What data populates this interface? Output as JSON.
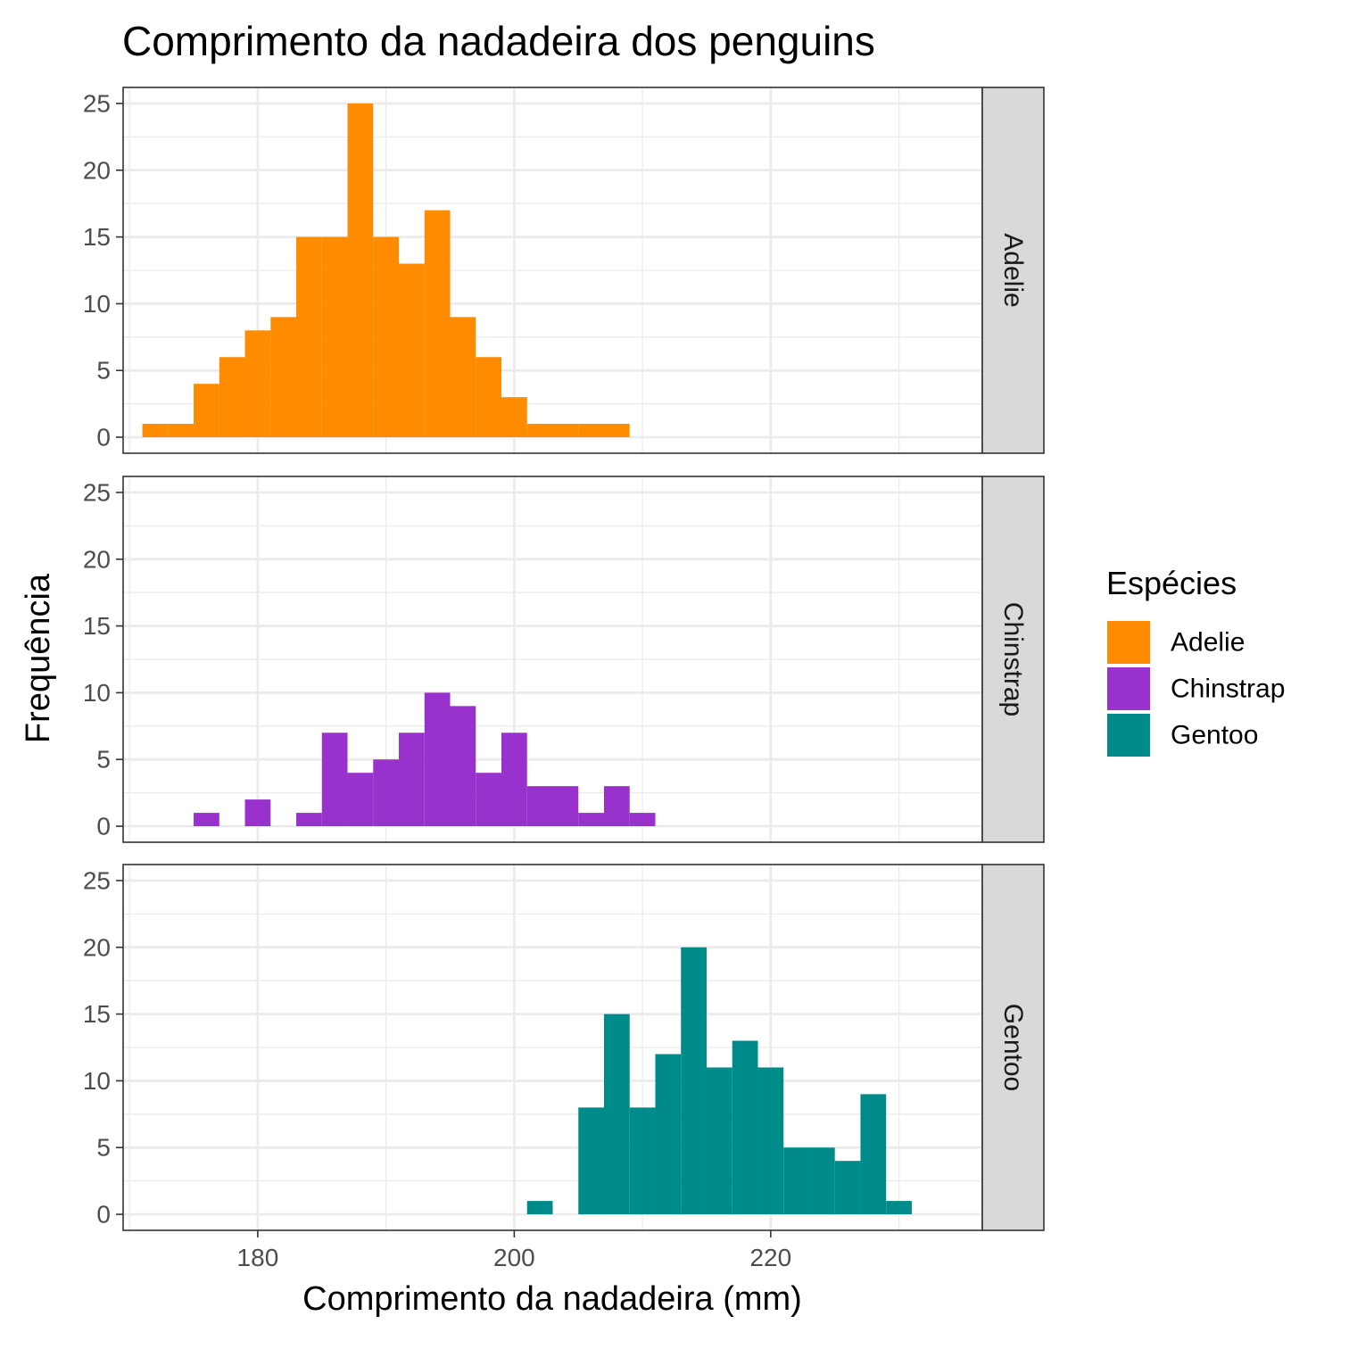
{
  "chart_data": {
    "type": "bar",
    "title": "Comprimento da nadadeira dos penguins",
    "xlabel": "Comprimento da nadadeira (mm)",
    "ylabel": "Frequência",
    "xlim": [
      169.5,
      236.5
    ],
    "ylim": [
      -1.2,
      26.2
    ],
    "x_ticks": [
      180,
      200,
      220
    ],
    "y_ticks": [
      0,
      5,
      10,
      15,
      20,
      25
    ],
    "grid": true,
    "legend_position": "right",
    "legend": {
      "title": "Espécies",
      "entries": [
        "Adelie",
        "Chinstrap",
        "Gentoo"
      ]
    },
    "bins": {
      "centers": [
        172,
        174,
        176,
        178,
        180,
        182,
        184,
        186,
        188,
        190,
        192,
        194,
        196,
        198,
        200,
        202,
        204,
        206,
        208,
        210,
        212,
        214,
        216,
        218,
        220,
        222,
        224,
        226,
        228,
        230,
        232
      ],
      "width": 2
    },
    "series": [
      {
        "name": "Adelie",
        "color": "#FF8C00",
        "values": [
          1,
          1,
          4,
          6,
          8,
          9,
          15,
          15,
          25,
          15,
          13,
          17,
          9,
          6,
          3,
          1,
          1,
          1,
          1,
          0,
          0,
          0,
          0,
          0,
          0,
          0,
          0,
          0,
          0,
          0,
          0
        ]
      },
      {
        "name": "Chinstrap",
        "color": "#9932CC",
        "values": [
          0,
          0,
          1,
          0,
          2,
          0,
          1,
          7,
          4,
          5,
          7,
          10,
          9,
          4,
          7,
          3,
          3,
          1,
          3,
          1,
          0,
          0,
          0,
          0,
          0,
          0,
          0,
          0,
          0,
          0,
          0
        ]
      },
      {
        "name": "Gentoo",
        "color": "#008B8B",
        "values": [
          0,
          0,
          0,
          0,
          0,
          0,
          0,
          0,
          0,
          0,
          0,
          0,
          0,
          0,
          0,
          1,
          0,
          8,
          15,
          8,
          12,
          20,
          11,
          13,
          11,
          5,
          5,
          4,
          9,
          1,
          0
        ]
      }
    ]
  }
}
